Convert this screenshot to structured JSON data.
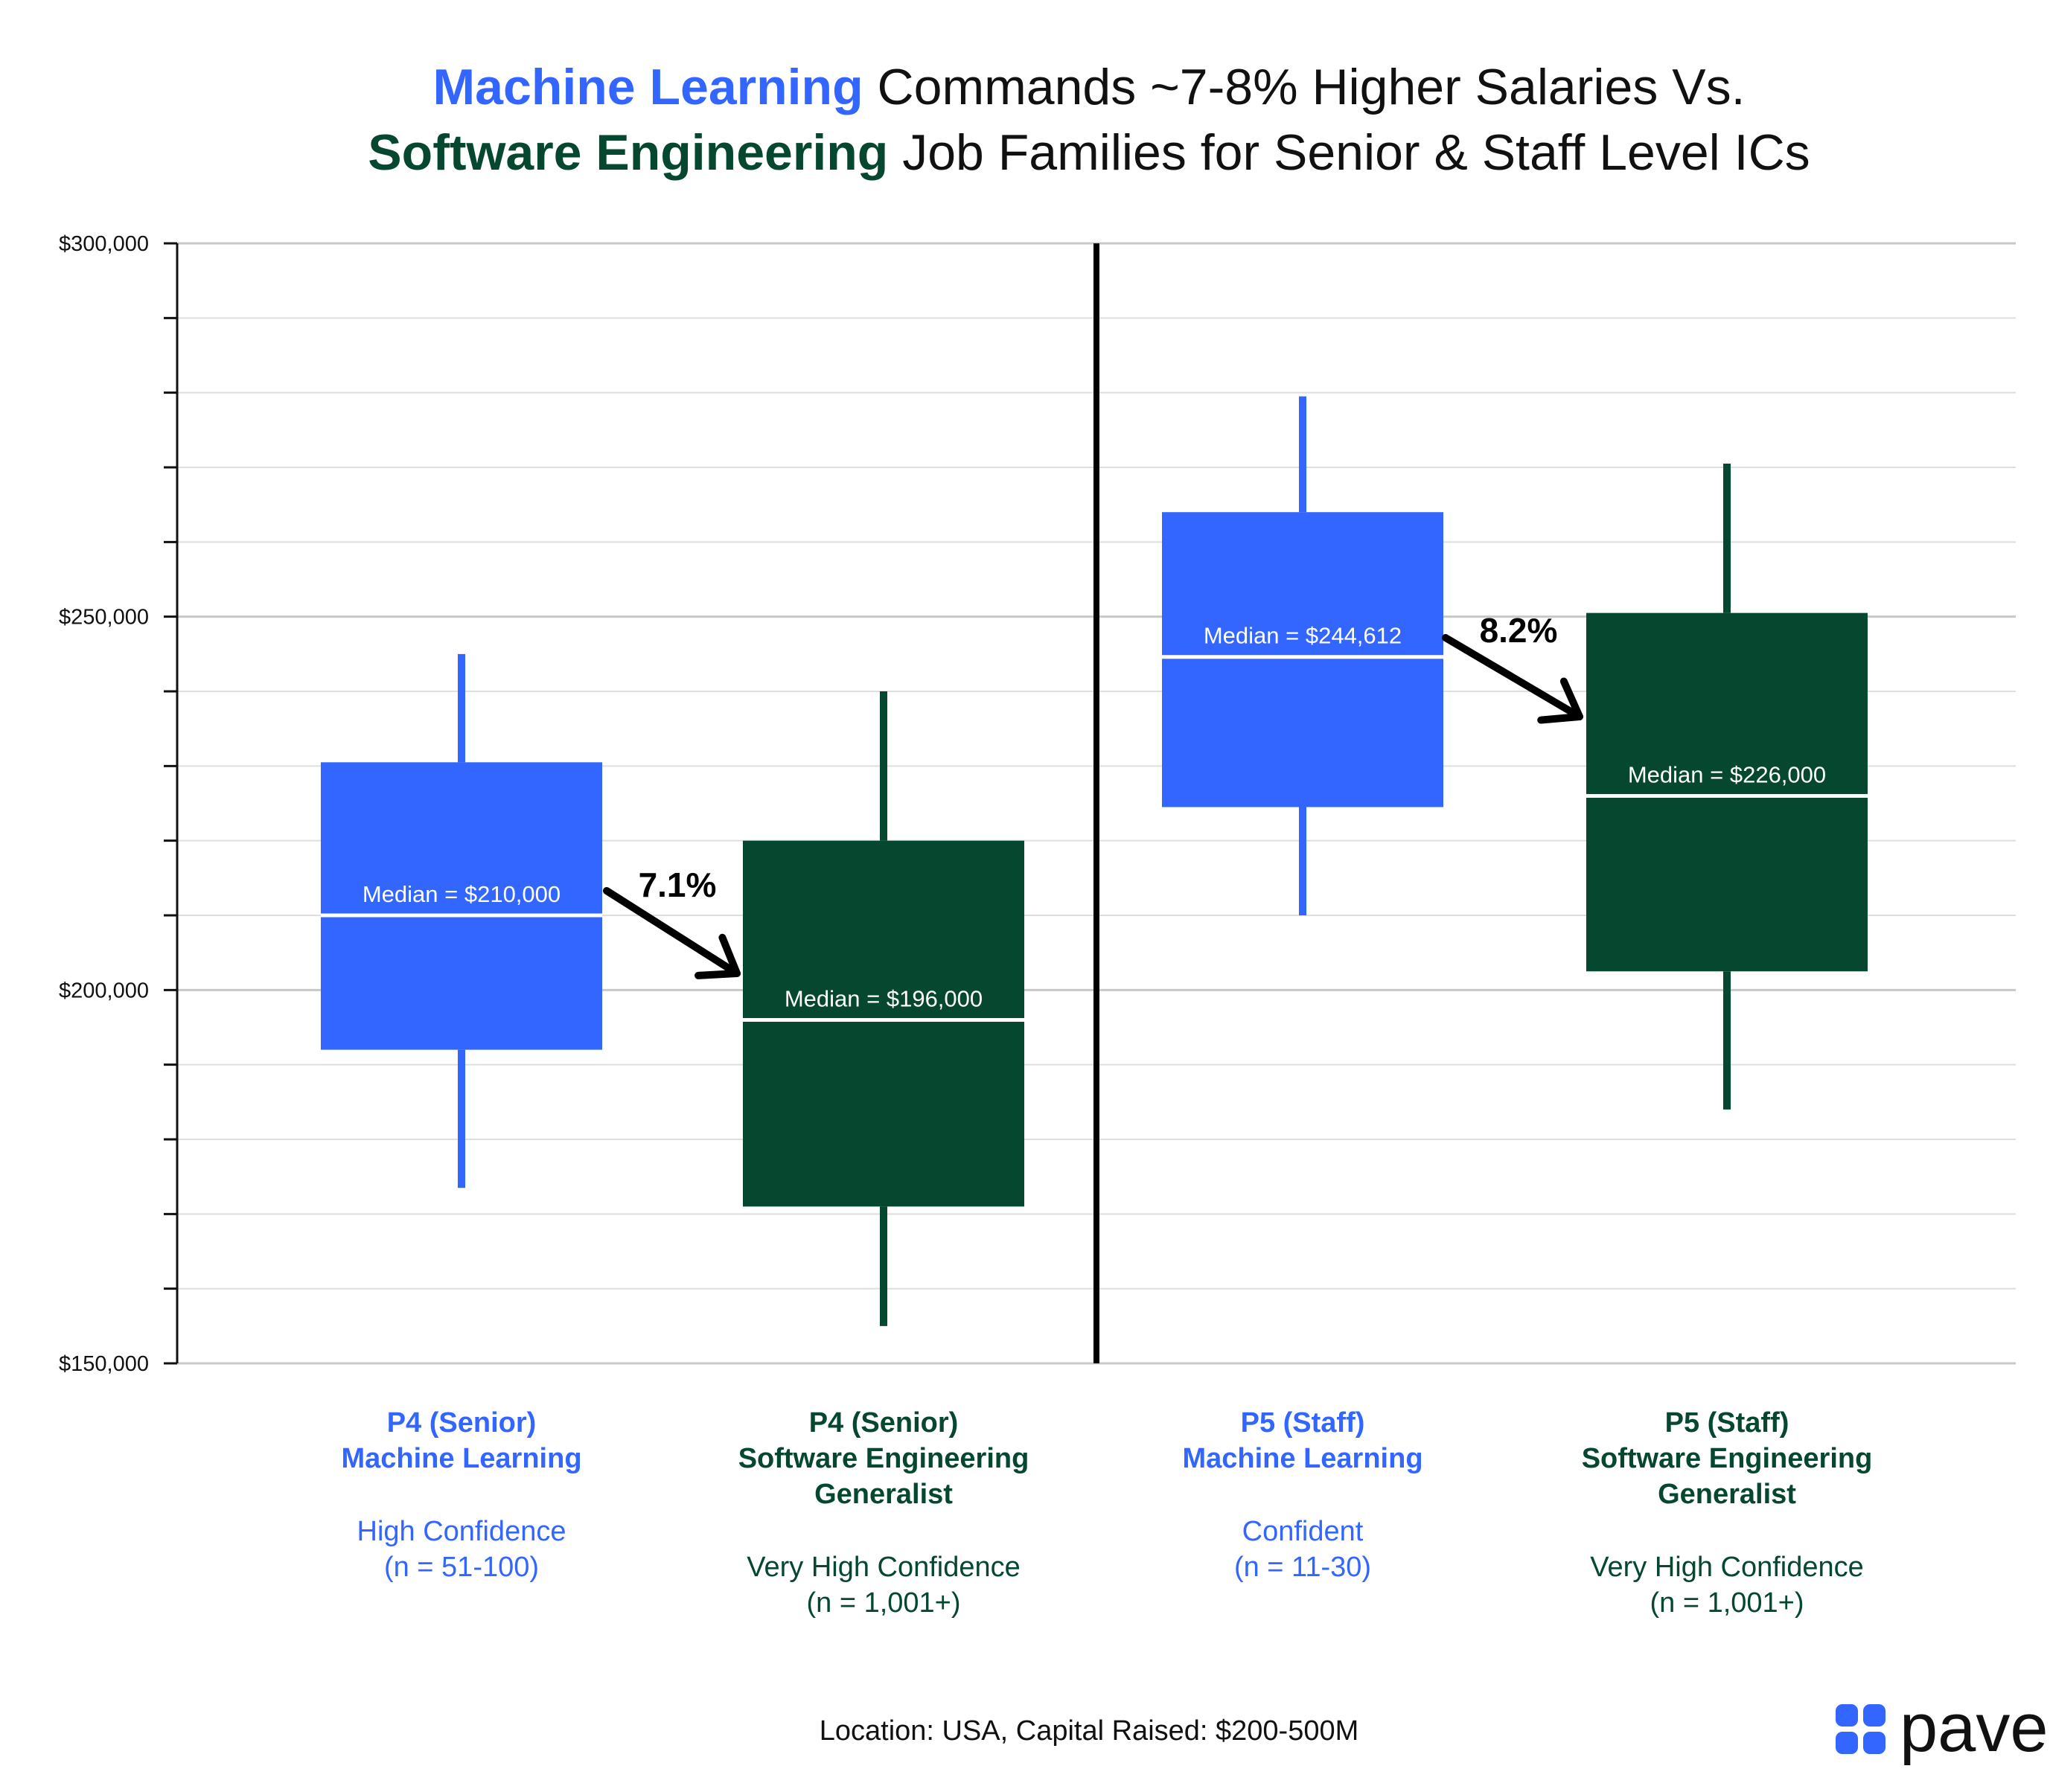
{
  "title": {
    "line1_highlight": "Machine Learning",
    "line1_rest": " Commands ~7-8% Higher Salaries Vs.",
    "line2_highlight": "Software Engineering",
    "line2_rest": " Job Families for Senior & Staff Level ICs"
  },
  "colors": {
    "ml_blue": "#3366FF",
    "swe_green": "#05472F",
    "grid": "#dedede",
    "axis": "#111111",
    "divider": "#000000"
  },
  "footer": "Location: USA, Capital Raised: $200-500M",
  "logo": {
    "text": "pave",
    "icon": "four-rounded-squares-icon"
  },
  "chart_data": {
    "type": "boxplot",
    "ylim": [
      150000,
      300000
    ],
    "y_ticks": [
      {
        "value": 150000,
        "label": "$150,000"
      },
      {
        "value": 200000,
        "label": "$200,000"
      },
      {
        "value": 250000,
        "label": "$250,000"
      },
      {
        "value": 300000,
        "label": "$300,000"
      }
    ],
    "minor_tick_step": 10000,
    "grid": true,
    "boxes": [
      {
        "category_line1": "P4 (Senior)",
        "category_line2": "Machine Learning",
        "category_line3": "",
        "confidence": "High Confidence",
        "sample": "(n = 51-100)",
        "family": "ml",
        "whisker_low": 173500,
        "q1": 192000,
        "median": 210000,
        "q3": 230500,
        "whisker_high": 245000,
        "median_label": "Median = $210,000"
      },
      {
        "category_line1": "P4 (Senior)",
        "category_line2": "Software Engineering",
        "category_line3": "Generalist",
        "confidence": "Very High Confidence",
        "sample": "(n = 1,001+)",
        "family": "swe",
        "whisker_low": 155000,
        "q1": 171000,
        "median": 196000,
        "q3": 220000,
        "whisker_high": 240000,
        "median_label": "Median = $196,000"
      },
      {
        "category_line1": "P5 (Staff)",
        "category_line2": "Machine Learning",
        "category_line3": "",
        "confidence": "Confident",
        "sample": "(n = 11-30)",
        "family": "ml",
        "whisker_low": 210000,
        "q1": 224500,
        "median": 244612,
        "q3": 264000,
        "whisker_high": 279500,
        "median_label": "Median = $244,612"
      },
      {
        "category_line1": "P5 (Staff)",
        "category_line2": "Software Engineering",
        "category_line3": "Generalist",
        "confidence": "Very High Confidence",
        "sample": "(n = 1,001+)",
        "family": "swe",
        "whisker_low": 184000,
        "q1": 202500,
        "median": 226000,
        "q3": 250500,
        "whisker_high": 270500,
        "median_label": "Median = $226,000"
      }
    ],
    "comparisons": [
      {
        "label": "7.1%",
        "from_box": 0,
        "to_box": 1
      },
      {
        "label": "8.2%",
        "from_box": 2,
        "to_box": 3
      }
    ]
  }
}
